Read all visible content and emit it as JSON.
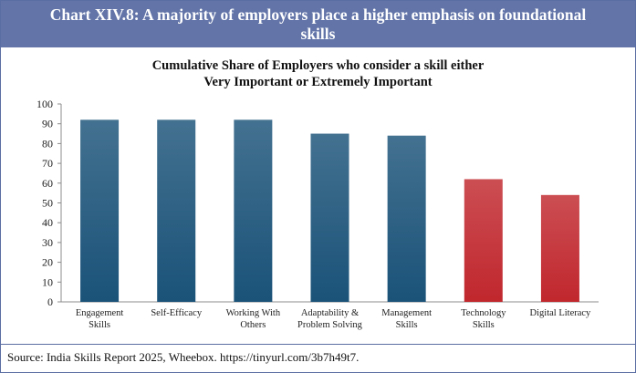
{
  "header": {
    "title": "Chart XIV.8: A majority of employers place a higher emphasis on foundational skills"
  },
  "chart_data": {
    "type": "bar",
    "title_line1": "Cumulative Share of Employers who consider a skill either",
    "title_line2": "Very Important or Extremely Important",
    "categories": [
      [
        "Engagement",
        "Skills"
      ],
      [
        "Self-Efficacy"
      ],
      [
        "Working With",
        "Others"
      ],
      [
        "Adaptability &",
        "Problem Solving"
      ],
      [
        "Management",
        "Skills"
      ],
      [
        "Technology",
        "Skills"
      ],
      [
        "Digital Literacy"
      ]
    ],
    "values": [
      92,
      92,
      92,
      85,
      84,
      62,
      54
    ],
    "bar_colors": [
      "#1a5278",
      "#1a5278",
      "#1a5278",
      "#1a5278",
      "#1a5278",
      "#c0272d",
      "#c0272d"
    ],
    "ylim": [
      0,
      100
    ],
    "yticks": [
      0,
      10,
      20,
      30,
      40,
      50,
      60,
      70,
      80,
      90,
      100
    ],
    "grid": false,
    "xlabel": "",
    "ylabel": ""
  },
  "footer": {
    "source": "Source: India Skills Report 2025, Wheebox. https://tinyurl.com/3b7h49t7."
  },
  "colors": {
    "header_bg": "#6274a8",
    "foundational": "#1a5278",
    "technical": "#c0272d"
  }
}
